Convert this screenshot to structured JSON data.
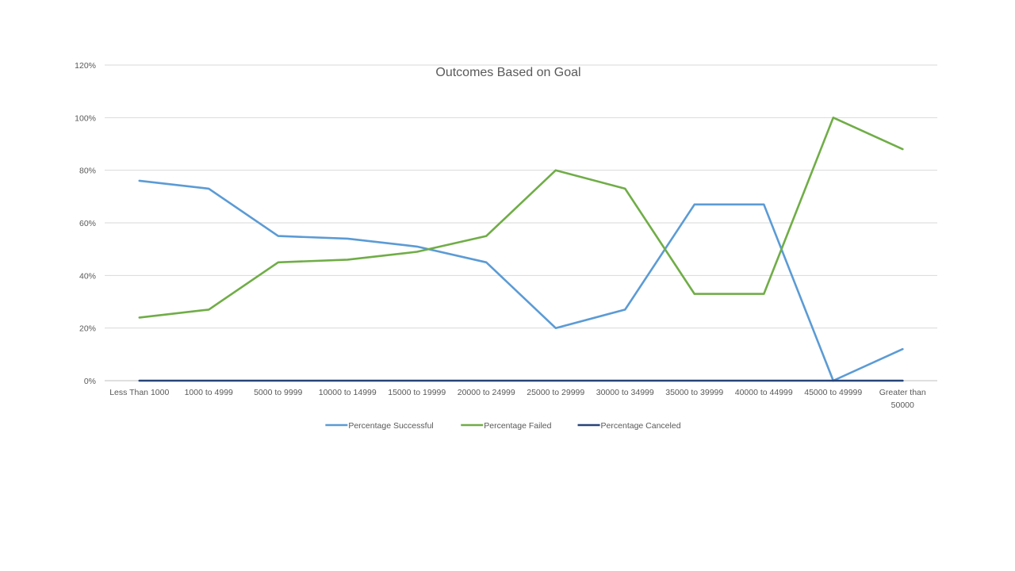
{
  "chart_data": {
    "type": "line",
    "title": "Outcomes Based on Goal",
    "xlabel": "",
    "ylabel": "",
    "categories": [
      "Less Than 1000",
      "1000 to 4999",
      "5000 to 9999",
      "10000 to 14999",
      "15000 to 19999",
      "20000 to 24999",
      "25000 to 29999",
      "30000 to 34999",
      "35000 to 39999",
      "40000 to 44999",
      "45000 to 49999",
      "Greater than 50000"
    ],
    "category_label_lines": [
      [
        "Less Than 1000"
      ],
      [
        "1000 to 4999"
      ],
      [
        "5000 to 9999"
      ],
      [
        "10000 to 14999"
      ],
      [
        "15000 to 19999"
      ],
      [
        "20000 to 24999"
      ],
      [
        "25000 to 29999"
      ],
      [
        "30000 to 34999"
      ],
      [
        "35000 to 39999"
      ],
      [
        "40000 to 44999"
      ],
      [
        "45000 to 49999"
      ],
      [
        "Greater than",
        "50000"
      ]
    ],
    "ylim": [
      0,
      120
    ],
    "yticks": [
      0,
      20,
      40,
      60,
      80,
      100,
      120
    ],
    "ytick_labels": [
      "0%",
      "20%",
      "40%",
      "60%",
      "80%",
      "100%",
      "120%"
    ],
    "grid": true,
    "legend_position": "bottom",
    "series": [
      {
        "name": "Percentage Successful",
        "color": "#5b9bd5",
        "values": [
          76,
          73,
          55,
          54,
          51,
          45,
          20,
          27,
          67,
          67,
          0,
          12
        ]
      },
      {
        "name": "Percentage Failed",
        "color": "#70ad47",
        "values": [
          24,
          27,
          45,
          46,
          49,
          55,
          80,
          73,
          33,
          33,
          100,
          88
        ]
      },
      {
        "name": "Percentage Canceled",
        "color": "#264478",
        "values": [
          0,
          0,
          0,
          0,
          0,
          0,
          0,
          0,
          0,
          0,
          0,
          0
        ]
      }
    ]
  }
}
